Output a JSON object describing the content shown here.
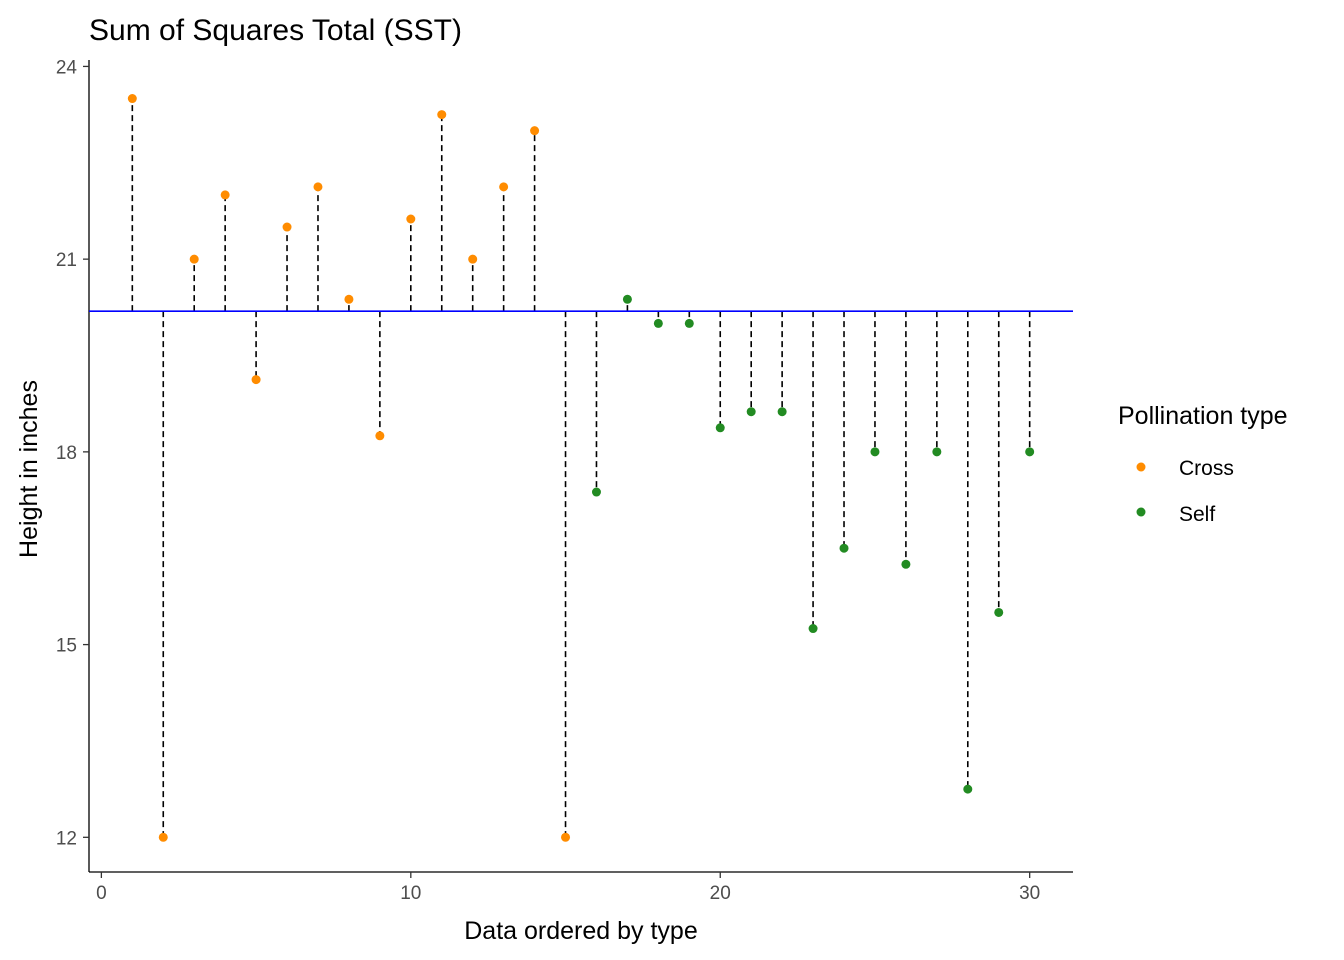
{
  "chart_data": {
    "type": "scatter",
    "title": "Sum of Squares Total (SST)",
    "xlabel": "Data ordered by type",
    "ylabel": "Height in inches",
    "xlim": [
      -0.4,
      31.4
    ],
    "ylim": [
      11.46,
      24.1
    ],
    "x_ticks": [
      0,
      10,
      20,
      30
    ],
    "y_ticks": [
      12,
      15,
      18,
      21,
      24
    ],
    "x_tick_labels": [
      "0",
      "10",
      "20",
      "30"
    ],
    "y_tick_labels": [
      "12",
      "15",
      "18",
      "21",
      "24"
    ],
    "grid": false,
    "mean_line": {
      "y": 20.19,
      "color": "#0000ff"
    },
    "legend": {
      "title": "Pollination type",
      "position": "right",
      "entries": [
        {
          "name": "Cross",
          "color": "#ff8c00"
        },
        {
          "name": "Self",
          "color": "#228b22"
        }
      ]
    },
    "series": [
      {
        "name": "Cross",
        "color": "#ff8c00",
        "x": [
          1,
          2,
          3,
          4,
          5,
          6,
          7,
          8,
          9,
          10,
          11,
          12,
          13,
          14,
          15
        ],
        "y": [
          23.5,
          12.0,
          21.0,
          22.0,
          19.125,
          21.5,
          22.125,
          20.375,
          18.25,
          21.625,
          23.25,
          21.0,
          22.125,
          23.0,
          12.0
        ]
      },
      {
        "name": "Self",
        "color": "#228b22",
        "x": [
          16,
          17,
          18,
          19,
          20,
          21,
          22,
          23,
          24,
          25,
          26,
          27,
          28,
          29,
          30
        ],
        "y": [
          17.375,
          20.375,
          20.0,
          20.0,
          18.375,
          18.625,
          18.625,
          15.25,
          16.5,
          18.0,
          16.25,
          18.0,
          12.75,
          15.5,
          18.0
        ]
      }
    ]
  }
}
